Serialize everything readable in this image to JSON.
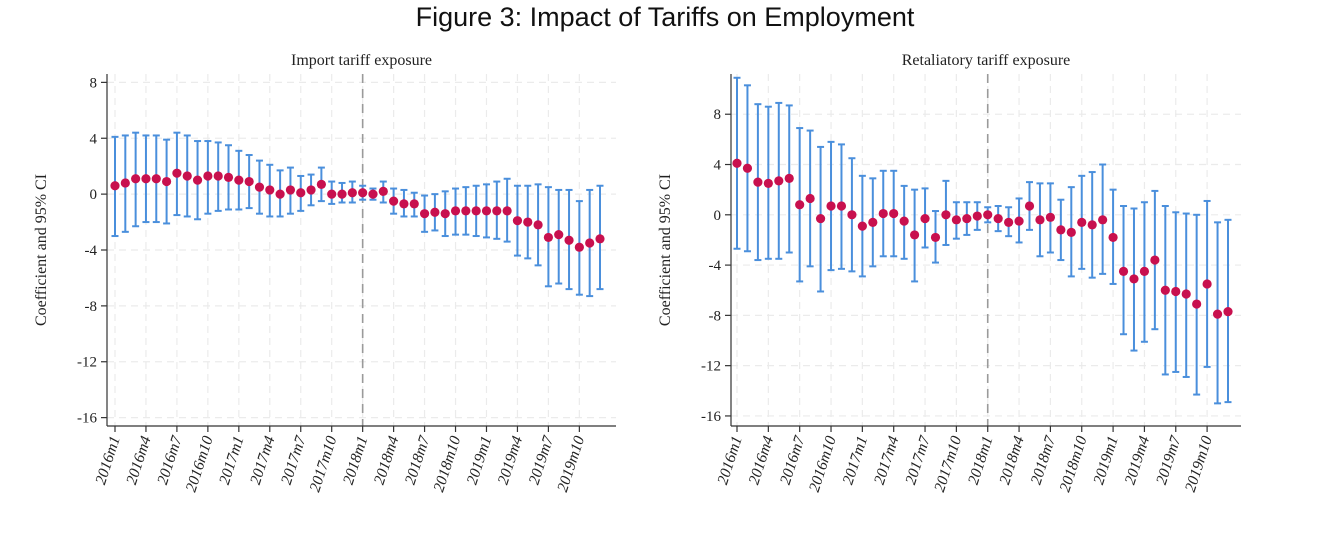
{
  "title": "Figure 3: Impact of Tariffs on Employment",
  "colors": {
    "marker": "#c8104e",
    "ci": "#4a8fdc",
    "vline": "#9a9a9a",
    "grid": "#ebebeb"
  },
  "chart_data": [
    {
      "type": "scatter",
      "title": "Import tariff exposure",
      "ylabel": "Coefficient and 95% CI",
      "xlabel": "",
      "ylim": [
        -16.6,
        8.6
      ],
      "yticks": [
        -16,
        -12,
        -8,
        -4,
        0,
        4,
        8
      ],
      "ytick_labels": [
        "-16",
        "-12",
        "-8",
        "-4",
        "0",
        "4",
        "8"
      ],
      "xtick_labels": [
        "2016m1",
        "2016m4",
        "2016m7",
        "2016m10",
        "2017m1",
        "2017m4",
        "2017m7",
        "2017m10",
        "2018m1",
        "2018m4",
        "2018m7",
        "2018m10",
        "2019m1",
        "2019m4",
        "2019m7",
        "2019m10"
      ],
      "event_line": "2018m1",
      "grid": true,
      "legend": "none",
      "x": [
        "2016m1",
        "2016m2",
        "2016m3",
        "2016m4",
        "2016m5",
        "2016m6",
        "2016m7",
        "2016m8",
        "2016m9",
        "2016m10",
        "2016m11",
        "2016m12",
        "2017m1",
        "2017m2",
        "2017m3",
        "2017m4",
        "2017m5",
        "2017m6",
        "2017m7",
        "2017m8",
        "2017m9",
        "2017m10",
        "2017m11",
        "2017m12",
        "2018m1",
        "2018m2",
        "2018m3",
        "2018m4",
        "2018m5",
        "2018m6",
        "2018m7",
        "2018m8",
        "2018m9",
        "2018m10",
        "2018m11",
        "2018m12",
        "2019m1",
        "2019m2",
        "2019m3",
        "2019m4",
        "2019m5",
        "2019m6",
        "2019m7",
        "2019m8",
        "2019m9",
        "2019m10",
        "2019m11",
        "2019m12"
      ],
      "coef": [
        0.6,
        0.8,
        1.1,
        1.1,
        1.1,
        0.9,
        1.5,
        1.3,
        1.0,
        1.3,
        1.3,
        1.2,
        1.0,
        0.9,
        0.5,
        0.3,
        0.0,
        0.3,
        0.1,
        0.3,
        0.7,
        0.0,
        0.0,
        0.1,
        0.1,
        0.0,
        0.2,
        -0.5,
        -0.7,
        -0.7,
        -1.4,
        -1.3,
        -1.4,
        -1.2,
        -1.2,
        -1.2,
        -1.2,
        -1.2,
        -1.2,
        -1.9,
        -2.0,
        -2.2,
        -3.1,
        -2.9,
        -3.3,
        -3.8,
        -3.5,
        -3.2
      ],
      "ci_low": [
        -3.0,
        -2.7,
        -2.3,
        -2.0,
        -2.0,
        -2.1,
        -1.5,
        -1.6,
        -1.8,
        -1.4,
        -1.2,
        -1.1,
        -1.1,
        -1.0,
        -1.4,
        -1.6,
        -1.6,
        -1.4,
        -1.2,
        -0.8,
        -0.5,
        -0.7,
        -0.6,
        -0.6,
        -0.4,
        -0.4,
        -0.6,
        -1.4,
        -1.6,
        -1.6,
        -2.7,
        -2.6,
        -3.0,
        -2.9,
        -2.9,
        -3.0,
        -3.1,
        -3.2,
        -3.4,
        -4.4,
        -4.6,
        -5.1,
        -6.6,
        -6.4,
        -6.8,
        -7.2,
        -7.3,
        -6.8
      ],
      "ci_high": [
        4.1,
        4.2,
        4.4,
        4.2,
        4.2,
        3.9,
        4.4,
        4.2,
        3.8,
        3.8,
        3.7,
        3.5,
        3.1,
        2.8,
        2.4,
        2.1,
        1.7,
        1.9,
        1.3,
        1.4,
        1.9,
        0.9,
        0.8,
        0.9,
        0.6,
        0.4,
        0.9,
        0.4,
        0.3,
        0.1,
        -0.1,
        0.0,
        0.2,
        0.4,
        0.5,
        0.6,
        0.7,
        0.9,
        1.1,
        0.6,
        0.6,
        0.7,
        0.5,
        0.3,
        0.3,
        -0.5,
        0.3,
        0.6
      ]
    },
    {
      "type": "scatter",
      "title": "Retaliatory tariff exposure",
      "ylabel": "Coefficient and 95% CI",
      "xlabel": "",
      "ylim": [
        -16.8,
        11.2
      ],
      "yticks": [
        -16,
        -12,
        -8,
        -4,
        0,
        4,
        8
      ],
      "ytick_labels": [
        "-16",
        "-12",
        "-8",
        "-4",
        "0",
        "4",
        "8"
      ],
      "xtick_labels": [
        "2016m1",
        "2016m4",
        "2016m7",
        "2016m10",
        "2017m1",
        "2017m4",
        "2017m7",
        "2017m10",
        "2018m1",
        "2018m4",
        "2018m7",
        "2018m10",
        "2019m1",
        "2019m4",
        "2019m7",
        "2019m10"
      ],
      "event_line": "2018m1",
      "grid": true,
      "legend": "none",
      "x": [
        "2016m1",
        "2016m2",
        "2016m3",
        "2016m4",
        "2016m5",
        "2016m6",
        "2016m7",
        "2016m8",
        "2016m9",
        "2016m10",
        "2016m11",
        "2016m12",
        "2017m1",
        "2017m2",
        "2017m3",
        "2017m4",
        "2017m5",
        "2017m6",
        "2017m7",
        "2017m8",
        "2017m9",
        "2017m10",
        "2017m11",
        "2017m12",
        "2018m1",
        "2018m2",
        "2018m3",
        "2018m4",
        "2018m5",
        "2018m6",
        "2018m7",
        "2018m8",
        "2018m9",
        "2018m10",
        "2018m11",
        "2018m12",
        "2019m1",
        "2019m2",
        "2019m3",
        "2019m4",
        "2019m5",
        "2019m6",
        "2019m7",
        "2019m8",
        "2019m9",
        "2019m10",
        "2019m11",
        "2019m12"
      ],
      "coef": [
        4.1,
        3.7,
        2.6,
        2.5,
        2.7,
        2.9,
        0.8,
        1.3,
        -0.3,
        0.7,
        0.7,
        0.0,
        -0.9,
        -0.6,
        0.1,
        0.1,
        -0.5,
        -1.6,
        -0.3,
        -1.8,
        0.0,
        -0.4,
        -0.3,
        -0.1,
        0.0,
        -0.3,
        -0.6,
        -0.5,
        0.7,
        -0.4,
        -0.2,
        -1.2,
        -1.4,
        -0.6,
        -0.8,
        -0.4,
        -1.8,
        -4.5,
        -5.1,
        -4.5,
        -3.6,
        -6.0,
        -6.1,
        -6.3,
        -7.1,
        -5.5,
        -7.9,
        -7.7
      ],
      "ci_low": [
        -2.7,
        -2.9,
        -3.6,
        -3.5,
        -3.5,
        -3.0,
        -5.3,
        -4.1,
        -6.1,
        -4.4,
        -4.3,
        -4.5,
        -4.9,
        -4.1,
        -3.3,
        -3.3,
        -3.5,
        -5.3,
        -2.6,
        -3.8,
        -2.4,
        -1.9,
        -1.6,
        -1.2,
        -0.6,
        -1.3,
        -1.7,
        -2.2,
        -1.2,
        -3.3,
        -3.0,
        -3.6,
        -4.9,
        -4.3,
        -5.0,
        -4.7,
        -5.5,
        -9.5,
        -10.8,
        -10.1,
        -9.1,
        -12.7,
        -12.5,
        -12.9,
        -14.3,
        -12.1,
        -15.0,
        -14.9
      ],
      "ci_high": [
        10.9,
        10.3,
        8.8,
        8.6,
        8.9,
        8.7,
        6.9,
        6.7,
        5.4,
        5.8,
        5.6,
        4.5,
        3.1,
        2.9,
        3.5,
        3.5,
        2.3,
        2.0,
        2.1,
        0.3,
        2.7,
        1.0,
        1.0,
        1.0,
        0.6,
        0.7,
        0.6,
        1.3,
        2.6,
        2.5,
        2.5,
        1.2,
        2.2,
        3.1,
        3.4,
        4.0,
        2.0,
        0.7,
        0.5,
        1.0,
        1.9,
        0.7,
        0.2,
        0.1,
        0.0,
        1.1,
        -0.6,
        -0.4
      ]
    }
  ]
}
